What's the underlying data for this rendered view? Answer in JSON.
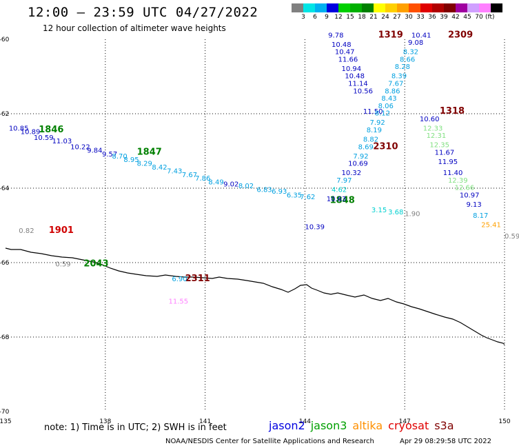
{
  "header": {
    "title": "12:00 – 23:59 UTC 04/27/2022",
    "subtitle": "12 hour collection of altimeter wave heights"
  },
  "colorbar": {
    "colors": [
      "#808080",
      "#00e5e5",
      "#00b0f0",
      "#0000e0",
      "#00d000",
      "#00b000",
      "#008000",
      "#ffff00",
      "#ffd000",
      "#ffa000",
      "#ff5000",
      "#e00000",
      "#b00000",
      "#800000",
      "#a000a0",
      "#d0a0ff",
      "#ff80ff",
      "#000000"
    ],
    "labels": [
      "3",
      "6",
      "9",
      "12",
      "15",
      "18",
      "21",
      "24",
      "27",
      "30",
      "33",
      "36",
      "39",
      "42",
      "45",
      "70"
    ],
    "unit": "(ft)"
  },
  "axes": {
    "lat_ticks": [
      "-60",
      "-62",
      "-64",
      "-66",
      "-68",
      "-70"
    ],
    "lon_ticks": [
      "135",
      "138",
      "141",
      "144",
      "147",
      "150"
    ]
  },
  "labels": {
    "passes": [
      {
        "text": "1846",
        "lon": 136.0,
        "lat": -62.5,
        "color": "#008000"
      },
      {
        "text": "1847",
        "lon": 138.95,
        "lat": -63.1,
        "color": "#008000"
      },
      {
        "text": "1848",
        "lon": 144.75,
        "lat": -64.4,
        "color": "#008000"
      },
      {
        "text": "1901",
        "lon": 136.3,
        "lat": -65.2,
        "color": "#d00000"
      },
      {
        "text": "2043",
        "lon": 137.35,
        "lat": -66.1,
        "color": "#008000"
      },
      {
        "text": "2311",
        "lon": 140.4,
        "lat": -66.5,
        "color": "#800000"
      },
      {
        "text": "2310",
        "lon": 146.05,
        "lat": -62.95,
        "color": "#800000"
      },
      {
        "text": "1319",
        "lon": 146.2,
        "lat": -59.95,
        "color": "#800000"
      },
      {
        "text": "2309",
        "lon": 148.3,
        "lat": -59.95,
        "color": "#800000"
      },
      {
        "text": "1318",
        "lon": 148.05,
        "lat": -62.0,
        "color": "#800000"
      }
    ],
    "values": [
      {
        "text": "9.78",
        "lon": 144.7,
        "lat": -59.95,
        "color": "#0000c0"
      },
      {
        "text": "10.48",
        "lon": 144.8,
        "lat": -60.2,
        "color": "#0000c0"
      },
      {
        "text": "10.47",
        "lon": 144.9,
        "lat": -60.4,
        "color": "#0000c0"
      },
      {
        "text": "11.66",
        "lon": 145.0,
        "lat": -60.6,
        "color": "#0000c0"
      },
      {
        "text": "10.94",
        "lon": 145.1,
        "lat": -60.85,
        "color": "#0000c0"
      },
      {
        "text": "10.48",
        "lon": 145.2,
        "lat": -61.05,
        "color": "#0000c0"
      },
      {
        "text": "11.14",
        "lon": 145.3,
        "lat": -61.25,
        "color": "#0000c0"
      },
      {
        "text": "10.56",
        "lon": 145.45,
        "lat": -61.45,
        "color": "#0000c0"
      },
      {
        "text": "11.50",
        "lon": 145.75,
        "lat": -62.0,
        "color": "#0000c0"
      },
      {
        "text": "10.41",
        "lon": 147.2,
        "lat": -59.95,
        "color": "#0000c0"
      },
      {
        "text": "9.08",
        "lon": 147.1,
        "lat": -60.15,
        "color": "#0000c0"
      },
      {
        "text": "8.32",
        "lon": 146.95,
        "lat": -60.4,
        "color": "#00a0e0"
      },
      {
        "text": "8.66",
        "lon": 146.85,
        "lat": -60.6,
        "color": "#00a0e0"
      },
      {
        "text": "8.28",
        "lon": 146.7,
        "lat": -60.8,
        "color": "#00a0e0"
      },
      {
        "text": "8.39",
        "lon": 146.6,
        "lat": -61.05,
        "color": "#00a0e0"
      },
      {
        "text": "7.67",
        "lon": 146.5,
        "lat": -61.25,
        "color": "#00a0e0"
      },
      {
        "text": "8.86",
        "lon": 146.4,
        "lat": -61.45,
        "color": "#00a0e0"
      },
      {
        "text": "8.43",
        "lon": 146.3,
        "lat": -61.65,
        "color": "#00a0e0"
      },
      {
        "text": "8.06",
        "lon": 146.2,
        "lat": -61.85,
        "color": "#00a0e0"
      },
      {
        "text": "8.12",
        "lon": 146.1,
        "lat": -62.05,
        "color": "#00a0e0"
      },
      {
        "text": "7.92",
        "lon": 145.95,
        "lat": -62.3,
        "color": "#00a0e0"
      },
      {
        "text": "8.19",
        "lon": 145.85,
        "lat": -62.5,
        "color": "#00a0e0"
      },
      {
        "text": "8.82",
        "lon": 145.75,
        "lat": -62.75,
        "color": "#00a0e0"
      },
      {
        "text": "8.69",
        "lon": 145.6,
        "lat": -62.95,
        "color": "#00a0e0"
      },
      {
        "text": "7.92",
        "lon": 145.45,
        "lat": -63.2,
        "color": "#00a0e0"
      },
      {
        "text": "10.69",
        "lon": 145.3,
        "lat": -63.4,
        "color": "#0000c0"
      },
      {
        "text": "10.32",
        "lon": 145.1,
        "lat": -63.65,
        "color": "#0000c0"
      },
      {
        "text": "7.97",
        "lon": 144.95,
        "lat": -63.85,
        "color": "#00a0e0"
      },
      {
        "text": "4.62",
        "lon": 144.8,
        "lat": -64.1,
        "color": "#00d0d0"
      },
      {
        "text": "10.63",
        "lon": 144.65,
        "lat": -64.35,
        "color": "#0000c0"
      },
      {
        "text": "10.60",
        "lon": 147.45,
        "lat": -62.2,
        "color": "#0000c0"
      },
      {
        "text": "12.33",
        "lon": 147.55,
        "lat": -62.45,
        "color": "#80e080"
      },
      {
        "text": "12.31",
        "lon": 147.65,
        "lat": -62.65,
        "color": "#80e080"
      },
      {
        "text": "12.35",
        "lon": 147.75,
        "lat": -62.9,
        "color": "#80e080"
      },
      {
        "text": "11.67",
        "lon": 147.9,
        "lat": -63.1,
        "color": "#0000c0"
      },
      {
        "text": "11.95",
        "lon": 148.0,
        "lat": -63.35,
        "color": "#0000c0"
      },
      {
        "text": "11.40",
        "lon": 148.15,
        "lat": -63.65,
        "color": "#0000c0"
      },
      {
        "text": "12.39",
        "lon": 148.3,
        "lat": -63.85,
        "color": "#80e080"
      },
      {
        "text": "12.66",
        "lon": 148.5,
        "lat": -64.05,
        "color": "#80e080"
      },
      {
        "text": "10.97",
        "lon": 148.65,
        "lat": -64.25,
        "color": "#0000c0"
      },
      {
        "text": "9.13",
        "lon": 148.85,
        "lat": -64.5,
        "color": "#0000c0"
      },
      {
        "text": "8.17",
        "lon": 149.05,
        "lat": -64.8,
        "color": "#00a0e0"
      },
      {
        "text": "25.41",
        "lon": 149.3,
        "lat": -65.05,
        "color": "#ffa000"
      },
      {
        "text": "0.59",
        "lon": 150.0,
        "lat": -65.35,
        "color": "#808080"
      },
      {
        "text": "10.85",
        "lon": 135.1,
        "lat": -62.45,
        "color": "#0000c0"
      },
      {
        "text": "10.89",
        "lon": 135.45,
        "lat": -62.55,
        "color": "#0000c0"
      },
      {
        "text": "10.59",
        "lon": 135.85,
        "lat": -62.7,
        "color": "#0000c0"
      },
      {
        "text": "11.03",
        "lon": 136.4,
        "lat": -62.8,
        "color": "#0000c0"
      },
      {
        "text": "10.22",
        "lon": 136.95,
        "lat": -62.95,
        "color": "#0000c0"
      },
      {
        "text": "9.84",
        "lon": 137.45,
        "lat": -63.05,
        "color": "#0000c0"
      },
      {
        "text": "9.57",
        "lon": 137.9,
        "lat": -63.15,
        "color": "#0000c0"
      },
      {
        "text": "8.70",
        "lon": 138.2,
        "lat": -63.2,
        "color": "#00a0e0"
      },
      {
        "text": "8.95",
        "lon": 138.55,
        "lat": -63.3,
        "color": "#00a0e0"
      },
      {
        "text": "8.29",
        "lon": 138.95,
        "lat": -63.4,
        "color": "#00a0e0"
      },
      {
        "text": "8.42",
        "lon": 139.4,
        "lat": -63.5,
        "color": "#00a0e0"
      },
      {
        "text": "7.43",
        "lon": 139.85,
        "lat": -63.6,
        "color": "#00a0e0"
      },
      {
        "text": "7.67",
        "lon": 140.3,
        "lat": -63.7,
        "color": "#00a0e0"
      },
      {
        "text": "7.86",
        "lon": 140.7,
        "lat": -63.8,
        "color": "#00a0e0"
      },
      {
        "text": "8.49",
        "lon": 141.1,
        "lat": -63.9,
        "color": "#00a0e0"
      },
      {
        "text": "9.02",
        "lon": 141.55,
        "lat": -63.95,
        "color": "#0000c0"
      },
      {
        "text": "8.02",
        "lon": 142.0,
        "lat": -64.0,
        "color": "#00a0e0"
      },
      {
        "text": "6.83",
        "lon": 142.55,
        "lat": -64.1,
        "color": "#00a0e0"
      },
      {
        "text": "6.93",
        "lon": 143.0,
        "lat": -64.15,
        "color": "#00a0e0"
      },
      {
        "text": "6.35",
        "lon": 143.45,
        "lat": -64.25,
        "color": "#00a0e0"
      },
      {
        "text": "7.62",
        "lon": 143.85,
        "lat": -64.3,
        "color": "#00a0e0"
      },
      {
        "text": "3.15",
        "lon": 146.0,
        "lat": -64.65,
        "color": "#00d0d0"
      },
      {
        "text": "3.68",
        "lon": 146.5,
        "lat": -64.7,
        "color": "#00d0d0"
      },
      {
        "text": "1.90",
        "lon": 147.0,
        "lat": -64.75,
        "color": "#808080"
      },
      {
        "text": "10.39",
        "lon": 144.0,
        "lat": -65.1,
        "color": "#0000c0"
      },
      {
        "text": "0.82",
        "lon": 135.4,
        "lat": -65.2,
        "color": "#808080"
      },
      {
        "text": "0.59",
        "lon": 136.5,
        "lat": -66.1,
        "color": "#808080"
      },
      {
        "text": "6.90",
        "lon": 140.0,
        "lat": -66.5,
        "color": "#00a0e0"
      },
      {
        "text": "11.55",
        "lon": 139.9,
        "lat": -67.1,
        "color": "#ff80ff"
      }
    ]
  },
  "note": "note: 1) Time is in UTC; 2) SWH is in feet",
  "satellites": [
    {
      "name": "jason2",
      "color": "#0000e0"
    },
    {
      "name": "jason3",
      "color": "#00a000"
    },
    {
      "name": "altika",
      "color": "#ff9000"
    },
    {
      "name": "cryosat",
      "color": "#e00000"
    },
    {
      "name": "s3a",
      "color": "#800000"
    }
  ],
  "credit": "NOAA/NESDIS Center for Satellite Applications and Research",
  "timestamp": "Apr 29 08:29:58 UTC 2022"
}
